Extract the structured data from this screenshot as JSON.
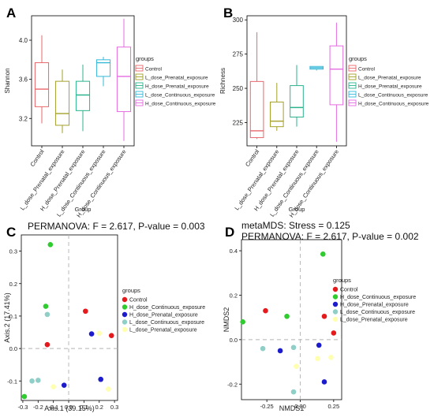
{
  "figure": {
    "colors": {
      "Control": "#e8676a",
      "L_dose_Prenatal_exposure": "#a3a12a",
      "H_dose_Prenatal_exposure": "#2bb38d",
      "L_dose_Continuous_exposure": "#34b8d8",
      "H_dose_Continuous_exposure": "#e46be0",
      "pcoa_Control": "#e41a1c",
      "pcoa_H_dose_Continuous_exposure": "#2ecc2e",
      "pcoa_H_dose_Prenatal_exposure": "#1c1ccc",
      "pcoa_L_dose_Continuous_exposure": "#8fcfc8",
      "pcoa_L_dose_Prenatal_exposure": "#ffffb0"
    }
  },
  "chart_data": [
    {
      "panel_label": "A",
      "type": "box",
      "categories": [
        "Control",
        "L_dose_Prenatal_exposure",
        "H_dose_Prenatal_exposure",
        "L_dose_Continuous_exposure",
        "H_dose_Continuous_exposure"
      ],
      "ylabel": "Shannon",
      "xlabel": "Group",
      "ylim": [
        2.92,
        4.25
      ],
      "yticks": [
        "3.2",
        "3.6",
        "4.0"
      ],
      "ytick_values": [
        3.2,
        3.6,
        4.0
      ],
      "legend_title": "groups",
      "legend_position": "right",
      "boxes": [
        {
          "min": 3.15,
          "q1": 3.32,
          "median": 3.5,
          "q3": 3.77,
          "max": 4.05
        },
        {
          "min": 3.05,
          "q1": 3.13,
          "median": 3.25,
          "q3": 3.58,
          "max": 3.7
        },
        {
          "min": 3.07,
          "q1": 3.28,
          "median": 3.44,
          "q3": 3.58,
          "max": 3.75
        },
        {
          "min": 3.53,
          "q1": 3.63,
          "median": 3.77,
          "q3": 3.8,
          "max": 3.83
        },
        {
          "min": 2.97,
          "q1": 3.27,
          "median": 3.63,
          "q3": 3.93,
          "max": 4.22
        }
      ]
    },
    {
      "panel_label": "B",
      "type": "box",
      "categories": [
        "Control",
        "L_dose_Prenatal_exposure",
        "H_dose_Prenatal_exposure",
        "L_dose_Continuous_exposure",
        "H_dose_Continuous_exposure"
      ],
      "ylabel": "Richness",
      "xlabel": "Group",
      "ylim": [
        208,
        303
      ],
      "yticks": [
        "225",
        "250",
        "275",
        "300"
      ],
      "ytick_values": [
        225,
        250,
        275,
        300
      ],
      "legend_title": "groups",
      "legend_position": "right",
      "boxes": [
        {
          "min": 213,
          "q1": 214,
          "median": 219,
          "q3": 255,
          "max": 291
        },
        {
          "min": 219,
          "q1": 222,
          "median": 226,
          "q3": 240,
          "max": 254
        },
        {
          "min": 222,
          "q1": 229,
          "median": 236,
          "q3": 252,
          "max": 267
        },
        {
          "min": 263,
          "q1": 264,
          "median": 265,
          "q3": 266,
          "max": 266
        },
        {
          "min": 211,
          "q1": 238,
          "median": 264,
          "q3": 281,
          "max": 298
        }
      ]
    },
    {
      "panel_label": "C",
      "type": "scatter",
      "title": "PERMANOVA: F = 2.617, P-value = 0.003",
      "xlabel": "Axis.1 (39.15%)",
      "ylabel": "Axis.2 (17.41%)",
      "xlim": [
        -0.31,
        0.32
      ],
      "ylim": [
        -0.16,
        0.35
      ],
      "xticks": [
        "-0.3",
        "-0.2",
        "-0.1",
        "0.0",
        "0.1",
        "0.2",
        "0.3"
      ],
      "xtick_values": [
        -0.3,
        -0.2,
        -0.1,
        0.0,
        0.1,
        0.2,
        0.3
      ],
      "yticks": [
        "-0.1",
        "0.0",
        "0.1",
        "0.2",
        "0.3"
      ],
      "ytick_values": [
        -0.1,
        0.0,
        0.1,
        0.2,
        0.3
      ],
      "legend_title": "groups",
      "legend_position": "right",
      "series": [
        {
          "name": "Control",
          "points": [
            [
              -0.14,
              0.012
            ],
            [
              0.11,
              0.115
            ],
            [
              0.28,
              0.04
            ]
          ]
        },
        {
          "name": "H_dose_Continuous_exposure",
          "points": [
            [
              -0.12,
              0.32
            ],
            [
              -0.15,
              0.13
            ],
            [
              -0.29,
              -0.148
            ]
          ]
        },
        {
          "name": "H_dose_Prenatal_exposure",
          "points": [
            [
              0.15,
              0.045
            ],
            [
              0.21,
              -0.095
            ],
            [
              -0.03,
              -0.113
            ]
          ]
        },
        {
          "name": "L_dose_Continuous_exposure",
          "points": [
            [
              -0.14,
              0.105
            ],
            [
              -0.24,
              -0.1
            ],
            [
              -0.2,
              -0.098
            ]
          ]
        },
        {
          "name": "L_dose_Prenatal_exposure",
          "points": [
            [
              0.2,
              0.047
            ],
            [
              0.26,
              -0.125
            ],
            [
              -0.1,
              -0.118
            ]
          ]
        }
      ]
    },
    {
      "panel_label": "D",
      "type": "scatter",
      "title": "metaMDS: Stress = 0.125",
      "subtitle": "PERMANOVA: F = 2.617, P-value = 0.002",
      "xlabel": "NMDS1",
      "ylabel": "NMDS2",
      "xlim": [
        -0.44,
        0.31
      ],
      "ylim": [
        -0.27,
        0.45
      ],
      "xticks": [
        "-0.25",
        "0.00",
        "0.25"
      ],
      "xtick_values": [
        -0.25,
        0.0,
        0.25
      ],
      "yticks": [
        "-0.2",
        "0.0",
        "0.2",
        "0.4"
      ],
      "ytick_values": [
        -0.2,
        0.0,
        0.2,
        0.4
      ],
      "legend_title": "groups",
      "legend_position": "right",
      "series": [
        {
          "name": "Control",
          "points": [
            [
              -0.26,
              0.13
            ],
            [
              0.18,
              0.105
            ],
            [
              0.25,
              0.03
            ]
          ]
        },
        {
          "name": "H_dose_Continuous_exposure",
          "points": [
            [
              0.17,
              0.385
            ],
            [
              -0.43,
              0.08
            ],
            [
              -0.1,
              0.105
            ]
          ]
        },
        {
          "name": "H_dose_Prenatal_exposure",
          "points": [
            [
              0.14,
              -0.025
            ],
            [
              0.18,
              -0.19
            ],
            [
              -0.15,
              -0.05
            ]
          ]
        },
        {
          "name": "L_dose_Continuous_exposure",
          "points": [
            [
              -0.28,
              -0.04
            ],
            [
              -0.05,
              -0.035
            ],
            [
              -0.05,
              -0.235
            ]
          ]
        },
        {
          "name": "L_dose_Prenatal_exposure",
          "points": [
            [
              -0.03,
              -0.12
            ],
            [
              0.23,
              -0.08
            ],
            [
              0.13,
              -0.085
            ]
          ]
        }
      ]
    }
  ]
}
